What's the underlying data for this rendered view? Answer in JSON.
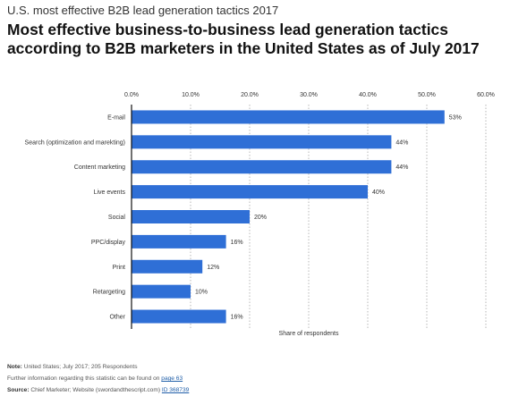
{
  "header": {
    "supertitle": "U.S. most effective B2B lead generation tactics 2017",
    "title": "Most effective business-to-business lead generation tactics according to B2B marketers in the United States as of July 2017"
  },
  "chart_data": {
    "type": "bar",
    "orientation": "horizontal",
    "categories": [
      "E-mail",
      "Search (optimization and marekting)",
      "Content marketing",
      "Live events",
      "Social",
      "PPC/display",
      "Print",
      "Retargeting",
      "Other"
    ],
    "values": [
      53,
      44,
      44,
      40,
      20,
      16,
      12,
      10,
      16
    ],
    "value_labels": [
      "53%",
      "44%",
      "44%",
      "40%",
      "20%",
      "16%",
      "12%",
      "10%",
      "16%"
    ],
    "xlabel": "Share of respondents",
    "xlim": [
      0,
      60
    ],
    "x_ticks": [
      "0.0%",
      "10.0%",
      "20.0%",
      "30.0%",
      "40.0%",
      "50.0%",
      "60.0%"
    ],
    "grid": true,
    "bar_color": "#2f6fd6"
  },
  "notes": {
    "note_label": "Note:",
    "note_text": "United States; July 2017; 205 Respondents",
    "further_text": "Further information regarding this statistic can be found on",
    "further_link": "page 63",
    "source_label": "Source:",
    "source_text": "Chief Marketer; Website (swordandthescript.com)",
    "source_id": "ID 368739"
  }
}
